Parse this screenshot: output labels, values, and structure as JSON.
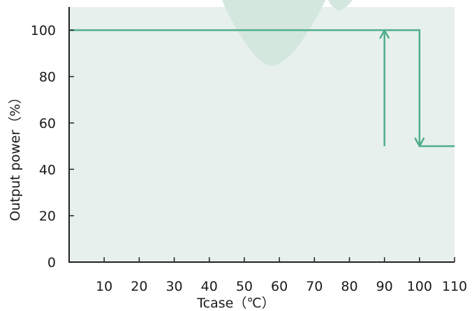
{
  "chart_data": {
    "type": "line",
    "xlabel": "Tcase（℃）",
    "ylabel": "Output power（%）",
    "xlim": [
      0,
      110
    ],
    "ylim": [
      0,
      110
    ],
    "x_ticks": [
      10,
      20,
      30,
      40,
      50,
      60,
      70,
      80,
      90,
      100,
      110
    ],
    "y_ticks": [
      0,
      20,
      40,
      60,
      80,
      100
    ],
    "grid": false,
    "series": [
      {
        "x": [
          0,
          100,
          100,
          110
        ],
        "y": [
          100,
          100,
          50,
          50
        ]
      },
      {
        "x": [
          90,
          90
        ],
        "y": [
          50,
          100
        ]
      }
    ],
    "annotations": [
      {
        "type": "arrow",
        "x": 100,
        "from_y": 100,
        "to_y": 50,
        "direction": "down"
      },
      {
        "type": "arrow",
        "x": 90,
        "from_y": 50,
        "to_y": 100,
        "direction": "up"
      }
    ],
    "colors": {
      "plot_background": "#e7f0ec",
      "line": "#4fae8a",
      "axis": "#222222",
      "watermark": "#d3e7df"
    }
  }
}
